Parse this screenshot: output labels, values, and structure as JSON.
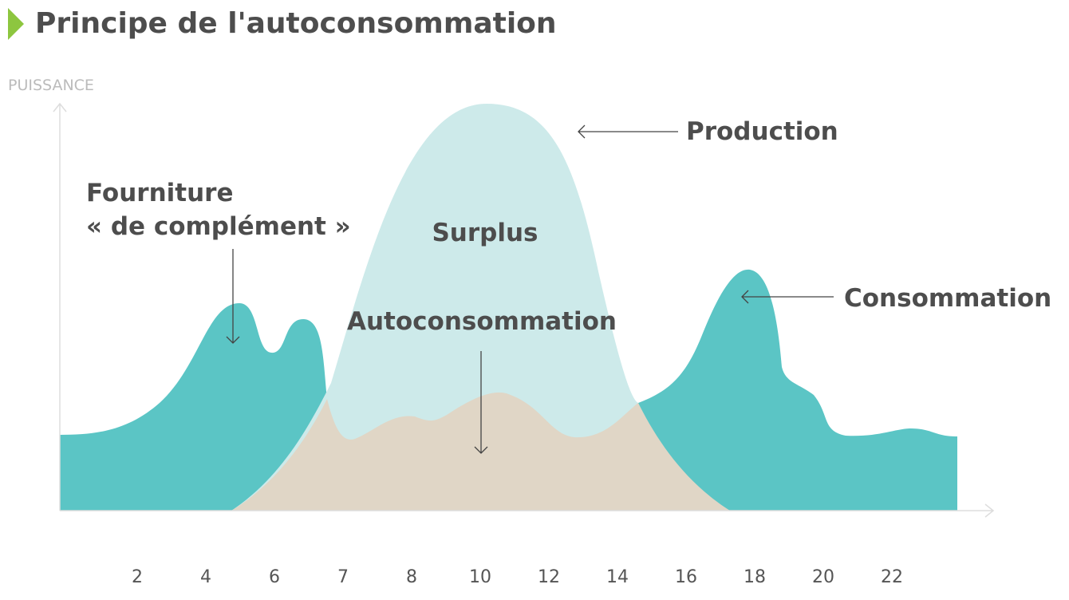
{
  "header": {
    "title": "Principe de l'autoconsommation"
  },
  "axes": {
    "y_label": "PUISSANCE",
    "x_labels": [
      2,
      4,
      6,
      7,
      8,
      10,
      12,
      14,
      16,
      18,
      20,
      22
    ]
  },
  "labels": {
    "production": "Production",
    "consommation": "Consommation",
    "surplus": "Surplus",
    "autoconsommation": "Autoconsommation",
    "fourniture_line1": "Fourniture",
    "fourniture_line2": "« de complément »"
  }
}
